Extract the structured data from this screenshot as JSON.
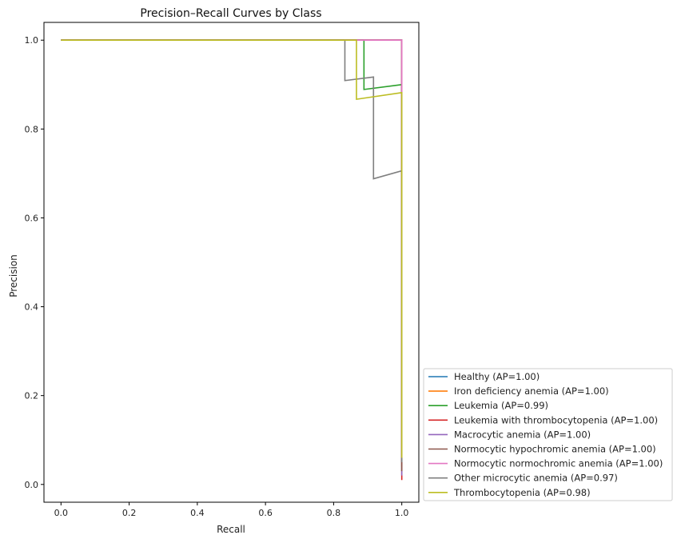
{
  "chart_data": {
    "type": "line",
    "title": "Precision–Recall Curves by Class",
    "xlabel": "Recall",
    "ylabel": "Precision",
    "xlim": [
      -0.05,
      1.05
    ],
    "ylim": [
      -0.04,
      1.04
    ],
    "xticks": [
      0.0,
      0.2,
      0.4,
      0.6,
      0.8,
      1.0
    ],
    "yticks": [
      0.0,
      0.2,
      0.4,
      0.6,
      0.8,
      1.0
    ],
    "xtick_labels": [
      "0.0",
      "0.2",
      "0.4",
      "0.6",
      "0.8",
      "1.0"
    ],
    "ytick_labels": [
      "0.0",
      "0.2",
      "0.4",
      "0.6",
      "0.8",
      "1.0"
    ],
    "grid": false,
    "legend_position": "lower-right-outside",
    "series": [
      {
        "label": "Healthy (AP=1.00)",
        "color": "#1f77b4",
        "points": [
          [
            0,
            1
          ],
          [
            1,
            1
          ],
          [
            1,
            0.05
          ]
        ]
      },
      {
        "label": "Iron deficiency anemia (AP=1.00)",
        "color": "#ff7f0e",
        "points": [
          [
            0,
            1
          ],
          [
            1,
            1
          ],
          [
            1,
            0.04
          ]
        ]
      },
      {
        "label": "Leukemia (AP=0.99)",
        "color": "#2ca02c",
        "points": [
          [
            0,
            1
          ],
          [
            0.889,
            1
          ],
          [
            0.889,
            0.889
          ],
          [
            1,
            0.9
          ],
          [
            1,
            0.03
          ]
        ]
      },
      {
        "label": "Leukemia with thrombocytopenia (AP=1.00)",
        "color": "#d62728",
        "points": [
          [
            0,
            1
          ],
          [
            1,
            1
          ],
          [
            1,
            0.01
          ]
        ]
      },
      {
        "label": "Macrocytic anemia (AP=1.00)",
        "color": "#9467bd",
        "points": [
          [
            0,
            1
          ],
          [
            1,
            1
          ],
          [
            1,
            0.02
          ]
        ]
      },
      {
        "label": "Normocytic hypochromic anemia (AP=1.00)",
        "color": "#8c564b",
        "points": [
          [
            0,
            1
          ],
          [
            1,
            1
          ],
          [
            1,
            0.03
          ]
        ]
      },
      {
        "label": "Normocytic normochromic anemia (AP=1.00)",
        "color": "#e377c2",
        "points": [
          [
            0,
            1
          ],
          [
            1,
            1
          ],
          [
            1,
            0.06
          ]
        ]
      },
      {
        "label": "Other microcytic anemia (AP=0.97)",
        "color": "#7f7f7f",
        "points": [
          [
            0,
            1
          ],
          [
            0.833,
            1
          ],
          [
            0.833,
            0.909
          ],
          [
            0.917,
            0.917
          ],
          [
            0.917,
            0.688
          ],
          [
            1,
            0.706
          ],
          [
            1,
            0.05
          ]
        ]
      },
      {
        "label": "Thrombocytopenia (AP=0.98)",
        "color": "#bcbd22",
        "points": [
          [
            0,
            1
          ],
          [
            0.867,
            1
          ],
          [
            0.867,
            0.867
          ],
          [
            1,
            0.882
          ],
          [
            1,
            0.06
          ]
        ]
      }
    ]
  }
}
